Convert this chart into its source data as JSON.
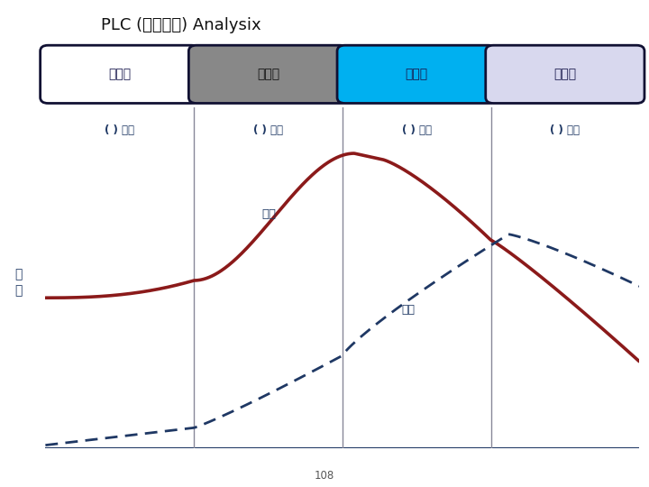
{
  "title": "PLC (상품주기) Analysix",
  "stage_labels": [
    "도입기",
    "성장기",
    "성숙기",
    "쇄퇰기"
  ],
  "stage_colors": [
    "#ffffff",
    "#888888",
    "#00b0f0",
    "#d8d8ee"
  ],
  "stage_border": "#111133",
  "period_label": "( ) 개월",
  "sales_label": "매출",
  "profit_label": "이익",
  "ylabel_text": "매\n출",
  "page_number": "108",
  "axis_color": "#1f3864",
  "sales_color": "#8b1a1a",
  "profit_color": "#1f3864",
  "divider_color": "#888899",
  "background": "#ffffff",
  "title_color": "#111111",
  "label_color": "#1f3864"
}
